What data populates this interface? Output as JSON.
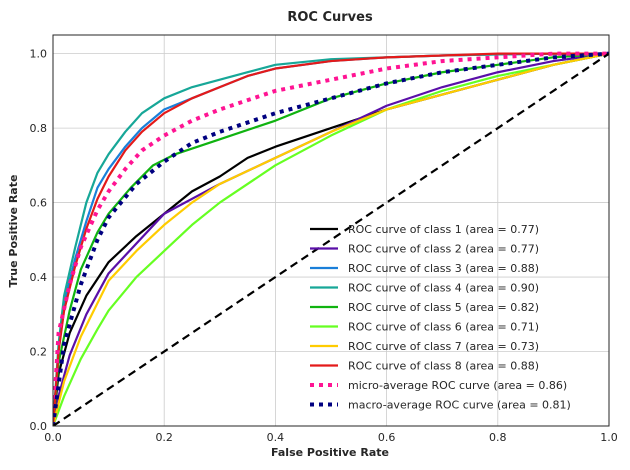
{
  "chart_data": {
    "type": "line",
    "title": "ROC Curves",
    "xlabel": "False Positive Rate",
    "ylabel": "True Positive Rate",
    "xlim": [
      0,
      1
    ],
    "ylim": [
      0,
      1.05
    ],
    "grid": true,
    "legend_position": "lower-right",
    "xticks": [
      0,
      0.2,
      0.4,
      0.6,
      0.8,
      1
    ],
    "yticks": [
      0,
      0.2,
      0.4,
      0.6,
      0.8,
      1
    ],
    "xtick_labels": [
      "0.0",
      "0.2",
      "0.4",
      "0.6",
      "0.8",
      "1.0"
    ],
    "ytick_labels": [
      "0.0",
      "0.2",
      "0.4",
      "0.6",
      "0.8",
      "1.0"
    ],
    "series": [
      {
        "name": "ROC curve of class 1 (area = 0.77)",
        "color": "#000000",
        "style": "solid",
        "x": [
          0,
          0.01,
          0.03,
          0.06,
          0.1,
          0.15,
          0.2,
          0.25,
          0.3,
          0.35,
          0.4,
          0.5,
          0.6,
          0.7,
          0.8,
          0.9,
          1.0
        ],
        "y": [
          0,
          0.14,
          0.25,
          0.35,
          0.44,
          0.51,
          0.57,
          0.63,
          0.67,
          0.72,
          0.75,
          0.8,
          0.85,
          0.89,
          0.93,
          0.97,
          1.0
        ]
      },
      {
        "name": "ROC curve of class 2 (area = 0.77)",
        "color": "#5a0fa8",
        "style": "solid",
        "x": [
          0,
          0.01,
          0.03,
          0.06,
          0.1,
          0.15,
          0.2,
          0.3,
          0.4,
          0.5,
          0.6,
          0.7,
          0.8,
          0.9,
          1.0
        ],
        "y": [
          0,
          0.08,
          0.19,
          0.3,
          0.41,
          0.49,
          0.57,
          0.65,
          0.72,
          0.79,
          0.86,
          0.91,
          0.95,
          0.98,
          1.0
        ]
      },
      {
        "name": "ROC curve of class 3 (area = 0.88)",
        "color": "#1a7fd9",
        "style": "solid",
        "x": [
          0,
          0.01,
          0.02,
          0.04,
          0.06,
          0.08,
          0.1,
          0.13,
          0.16,
          0.2,
          0.25,
          0.3,
          0.35,
          0.4,
          0.5,
          0.6,
          0.7,
          0.8,
          0.9,
          1.0
        ],
        "y": [
          0,
          0.2,
          0.33,
          0.45,
          0.55,
          0.64,
          0.69,
          0.75,
          0.8,
          0.85,
          0.88,
          0.91,
          0.94,
          0.96,
          0.98,
          0.99,
          0.995,
          0.998,
          1.0,
          1.0
        ]
      },
      {
        "name": "ROC curve of class 4 (area = 0.90)",
        "color": "#17a798",
        "style": "solid",
        "x": [
          0,
          0.01,
          0.02,
          0.04,
          0.06,
          0.08,
          0.1,
          0.13,
          0.16,
          0.2,
          0.25,
          0.3,
          0.35,
          0.4,
          0.5,
          0.6,
          0.7,
          0.8,
          0.9,
          1.0
        ],
        "y": [
          0,
          0.22,
          0.35,
          0.48,
          0.6,
          0.68,
          0.73,
          0.79,
          0.84,
          0.88,
          0.91,
          0.93,
          0.95,
          0.97,
          0.985,
          0.99,
          0.995,
          0.998,
          1.0,
          1.0
        ]
      },
      {
        "name": "ROC curve of class 5 (area = 0.82)",
        "color": "#10b310",
        "style": "solid",
        "x": [
          0,
          0.01,
          0.03,
          0.05,
          0.08,
          0.1,
          0.14,
          0.18,
          0.22,
          0.3,
          0.4,
          0.5,
          0.6,
          0.7,
          0.8,
          0.9,
          1.0
        ],
        "y": [
          0,
          0.17,
          0.31,
          0.42,
          0.52,
          0.57,
          0.64,
          0.7,
          0.73,
          0.77,
          0.82,
          0.88,
          0.92,
          0.95,
          0.97,
          0.99,
          1.0
        ]
      },
      {
        "name": "ROC curve of class 6 (area = 0.71)",
        "color": "#66ff22",
        "style": "solid",
        "x": [
          0,
          0.02,
          0.05,
          0.08,
          0.1,
          0.15,
          0.2,
          0.25,
          0.3,
          0.4,
          0.5,
          0.6,
          0.7,
          0.8,
          0.9,
          1.0
        ],
        "y": [
          0,
          0.08,
          0.18,
          0.26,
          0.31,
          0.4,
          0.47,
          0.54,
          0.6,
          0.7,
          0.78,
          0.85,
          0.9,
          0.94,
          0.97,
          1.0
        ]
      },
      {
        "name": "ROC curve of class 7 (area = 0.73)",
        "color": "#ffcc00",
        "style": "solid",
        "x": [
          0,
          0.02,
          0.05,
          0.08,
          0.1,
          0.15,
          0.2,
          0.25,
          0.3,
          0.4,
          0.5,
          0.6,
          0.7,
          0.8,
          0.9,
          1.0
        ],
        "y": [
          0,
          0.12,
          0.24,
          0.33,
          0.39,
          0.47,
          0.54,
          0.6,
          0.65,
          0.72,
          0.79,
          0.85,
          0.89,
          0.93,
          0.97,
          1.0
        ]
      },
      {
        "name": "ROC curve of class 8 (area = 0.88)",
        "color": "#e41a1a",
        "style": "solid",
        "x": [
          0,
          0.01,
          0.02,
          0.04,
          0.06,
          0.08,
          0.1,
          0.13,
          0.16,
          0.2,
          0.25,
          0.3,
          0.35,
          0.4,
          0.5,
          0.6,
          0.7,
          0.8,
          0.9,
          1.0
        ],
        "y": [
          0,
          0.2,
          0.31,
          0.43,
          0.53,
          0.61,
          0.67,
          0.74,
          0.79,
          0.84,
          0.88,
          0.91,
          0.94,
          0.96,
          0.98,
          0.99,
          0.995,
          1.0,
          1.0,
          1.0
        ]
      },
      {
        "name": "micro-average ROC curve (area = 0.86)",
        "color": "#ff1493",
        "style": "dotted",
        "x": [
          0,
          0.01,
          0.03,
          0.05,
          0.08,
          0.1,
          0.13,
          0.16,
          0.2,
          0.25,
          0.3,
          0.4,
          0.5,
          0.6,
          0.7,
          0.8,
          0.9,
          1.0
        ],
        "y": [
          0,
          0.25,
          0.38,
          0.48,
          0.58,
          0.63,
          0.69,
          0.74,
          0.78,
          0.82,
          0.85,
          0.9,
          0.93,
          0.96,
          0.98,
          0.99,
          1.0,
          1.0
        ]
      },
      {
        "name": "macro-average ROC curve (area = 0.81)",
        "color": "#000080",
        "style": "dotted",
        "x": [
          0,
          0.02,
          0.05,
          0.08,
          0.1,
          0.15,
          0.2,
          0.25,
          0.3,
          0.4,
          0.5,
          0.6,
          0.7,
          0.8,
          0.9,
          1.0
        ],
        "y": [
          0,
          0.22,
          0.38,
          0.5,
          0.56,
          0.65,
          0.71,
          0.76,
          0.79,
          0.84,
          0.88,
          0.92,
          0.95,
          0.97,
          0.99,
          1.0
        ]
      }
    ],
    "reference_line": {
      "x": [
        0,
        1
      ],
      "y": [
        0,
        1
      ],
      "color": "#000000",
      "style": "dashed"
    }
  }
}
